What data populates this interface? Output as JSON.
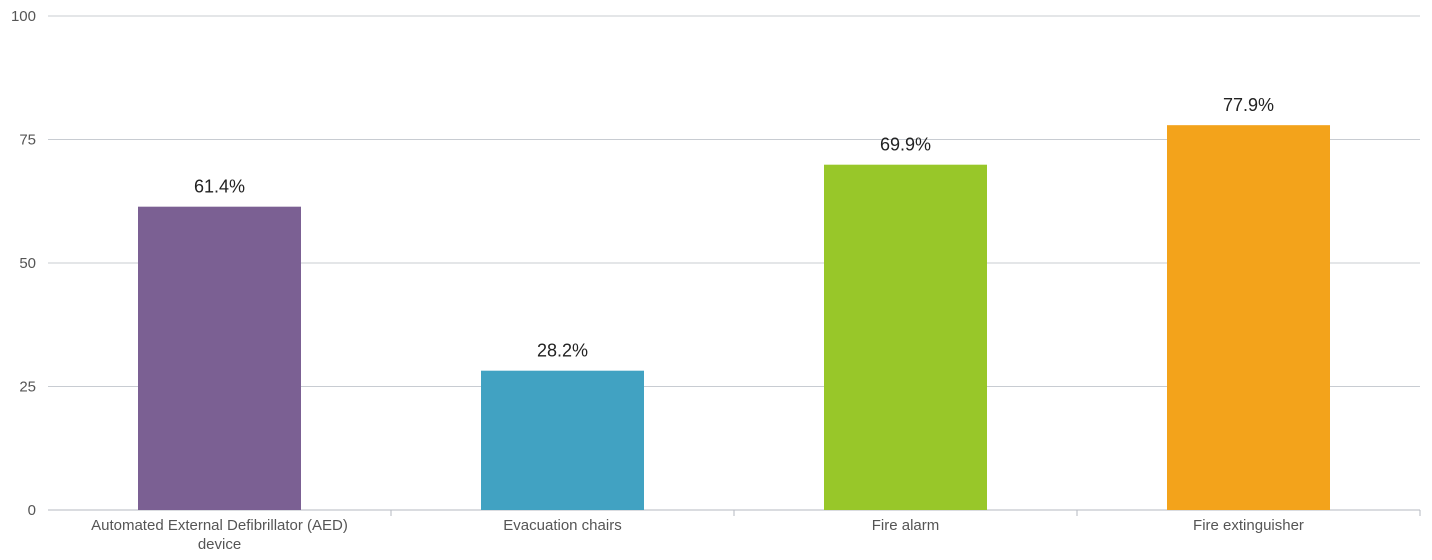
{
  "chart_data": {
    "type": "bar",
    "categories": [
      [
        "Automated External Defibrillator (AED)",
        "device"
      ],
      [
        "Evacuation chairs"
      ],
      [
        "Fire alarm"
      ],
      [
        "Fire extinguisher"
      ]
    ],
    "values": [
      61.4,
      28.2,
      69.9,
      77.9
    ],
    "data_labels": [
      "61.4%",
      "28.2%",
      "69.9%",
      "77.9%"
    ],
    "colors": [
      "#7b6093",
      "#41a2c2",
      "#98c729",
      "#f3a31b"
    ],
    "ylim": [
      0,
      100
    ],
    "yticks": [
      0,
      25,
      50,
      75,
      100
    ],
    "ytick_labels": [
      "0",
      "25",
      "50",
      "75",
      "100"
    ],
    "grid": true,
    "legend": "none",
    "title": "",
    "xlabel": "",
    "ylabel": ""
  }
}
